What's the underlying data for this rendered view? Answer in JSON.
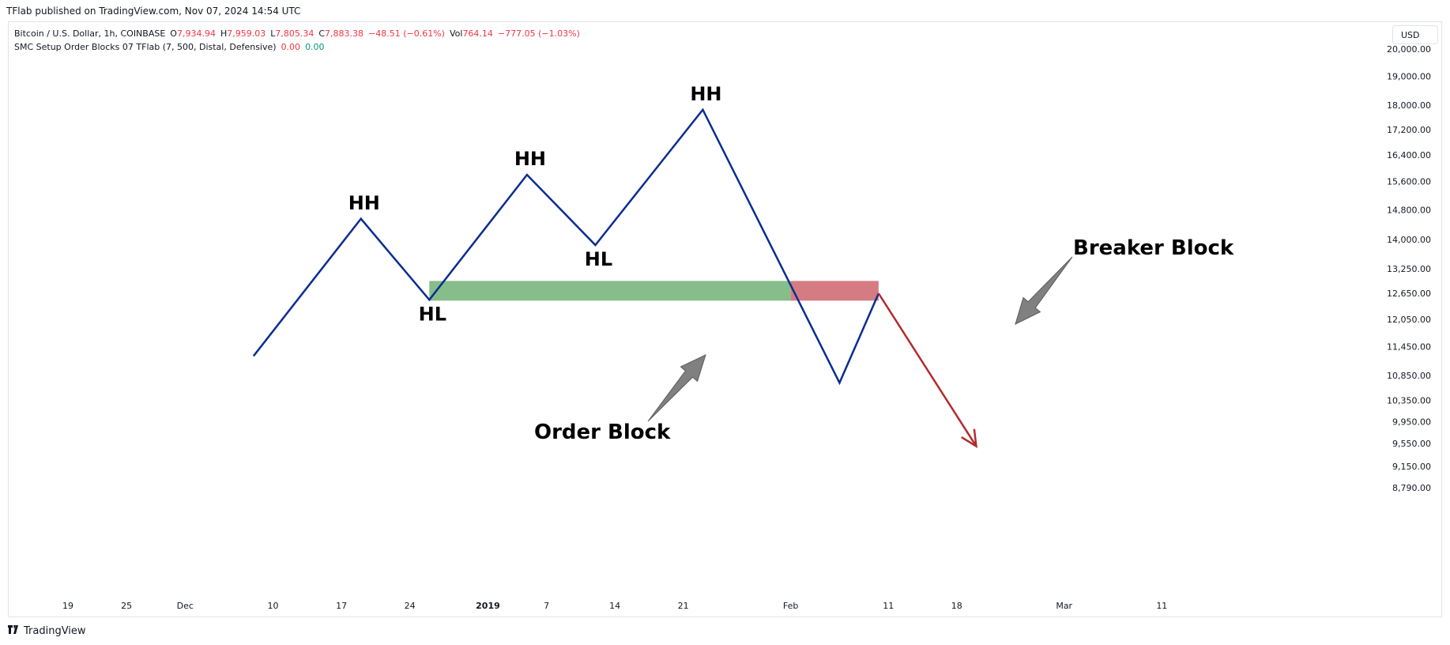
{
  "header": {
    "published": "TFlab published on TradingView.com, Nov 07, 2024 14:54 UTC"
  },
  "legend": {
    "symbol": "Bitcoin / U.S. Dollar, 1h, COINBASE",
    "o_label": "O",
    "o_value": "7,934.94",
    "h_label": "H",
    "h_value": "7,959.03",
    "l_label": "L",
    "l_value": "7,805.34",
    "c_label": "C",
    "c_value": "7,883.38",
    "change": "−48.51 (−0.61%)",
    "vol_label": "Vol",
    "vol_value": "764.14",
    "vol_change": "−777.05 (−1.03%)",
    "indicator": "SMC Setup Order Blocks 07 TFlab (7, 500, Distal, Defensive)",
    "ind_val1": "0.00",
    "ind_val2": "0.00"
  },
  "currency_button": "USD",
  "footer": {
    "brand": "TradingView"
  },
  "colors": {
    "price_line": "#0c2d8f",
    "projection": "#b22b2e",
    "order_block": "#86bd8a",
    "breaker_block": "#d47c82",
    "arrow_fill": "#808080",
    "negative": "#f23645",
    "positive": "#089981"
  },
  "chart_data": {
    "type": "line",
    "y_scale": "log",
    "y_ticks": [
      "20,000.00",
      "19,000.00",
      "18,000.00",
      "17,200.00",
      "16,400.00",
      "15,600.00",
      "14,800.00",
      "14,000.00",
      "13,250.00",
      "12,650.00",
      "12,050.00",
      "11,450.00",
      "10,850.00",
      "10,350.00",
      "9,950.00",
      "9,550.00",
      "9,150.00",
      "8,790.00"
    ],
    "x_ticks": [
      "19",
      "25",
      "Dec",
      "10",
      "17",
      "24",
      "2019",
      "7",
      "14",
      "21",
      "Feb",
      "11",
      "18",
      "Mar",
      "11"
    ],
    "series": [
      {
        "color": "#0c2d8f",
        "points": [
          {
            "x": "Dec 8",
            "y": 11250
          },
          {
            "x": "Dec 19",
            "y": 14550
          },
          {
            "x": "Dec 26",
            "y": 12500
          },
          {
            "x": "Jan 5",
            "y": 15800
          },
          {
            "x": "Jan 12",
            "y": 13850
          },
          {
            "x": "Jan 23",
            "y": 17850
          },
          {
            "x": "Feb 6",
            "y": 10700
          },
          {
            "x": "Feb 10",
            "y": 12650
          }
        ]
      },
      {
        "color": "#b22b2e",
        "points": [
          {
            "x": "Feb 10",
            "y": 12650
          },
          {
            "x": "Feb 20",
            "y": 9500
          }
        ]
      }
    ],
    "zones": [
      {
        "label": "Order Block",
        "x_start": "Dec 26",
        "x_end": "Feb 1",
        "y_low": 12480,
        "y_high": 12950
      },
      {
        "label": "Breaker Block",
        "x_start": "Feb 1",
        "x_end": "Feb 10",
        "y_low": 12480,
        "y_high": 12950
      }
    ],
    "annotations": [
      {
        "text": "HH",
        "x": "Dec 19",
        "y": 14550
      },
      {
        "text": "HL",
        "x": "Dec 26",
        "y": 12500
      },
      {
        "text": "HH",
        "x": "Jan 5",
        "y": 15800
      },
      {
        "text": "HL",
        "x": "Jan 12",
        "y": 13850
      },
      {
        "text": "HH",
        "x": "Jan 23",
        "y": 17850
      },
      {
        "text": "Order Block"
      },
      {
        "text": "Breaker Block"
      }
    ]
  }
}
